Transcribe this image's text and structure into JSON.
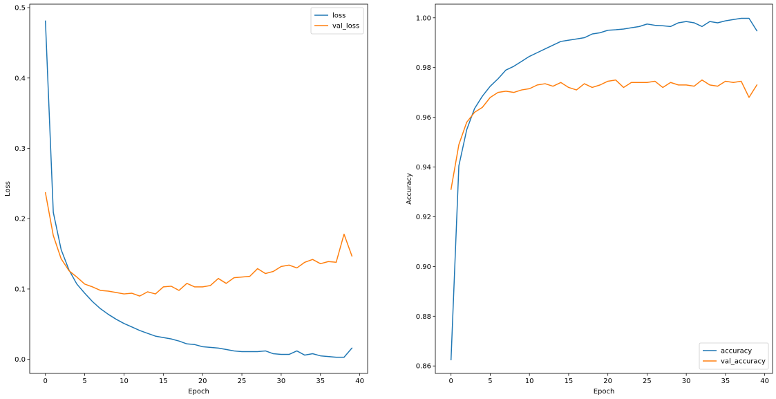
{
  "chart_data": [
    {
      "type": "line",
      "title": "",
      "xlabel": "Epoch",
      "ylabel": "Loss",
      "xlim": [
        -2,
        41
      ],
      "ylim": [
        -0.02,
        0.505
      ],
      "xticks": [
        0,
        5,
        10,
        15,
        20,
        25,
        30,
        35,
        40
      ],
      "yticks": [
        0.0,
        0.1,
        0.2,
        0.3,
        0.4,
        0.5
      ],
      "ytick_labels": [
        "0.0",
        "0.1",
        "0.2",
        "0.3",
        "0.4",
        "0.5"
      ],
      "legend_position": "upper-right",
      "grid": false,
      "x": [
        0,
        1,
        2,
        3,
        4,
        5,
        6,
        7,
        8,
        9,
        10,
        11,
        12,
        13,
        14,
        15,
        16,
        17,
        18,
        19,
        20,
        21,
        22,
        23,
        24,
        25,
        26,
        27,
        28,
        29,
        30,
        31,
        32,
        33,
        34,
        35,
        36,
        37,
        38,
        39
      ],
      "series": [
        {
          "name": "loss",
          "color": "#1f77b4",
          "values": [
            0.481,
            0.209,
            0.156,
            0.127,
            0.107,
            0.094,
            0.082,
            0.072,
            0.064,
            0.057,
            0.051,
            0.046,
            0.041,
            0.037,
            0.033,
            0.031,
            0.029,
            0.026,
            0.022,
            0.021,
            0.018,
            0.017,
            0.016,
            0.014,
            0.012,
            0.011,
            0.011,
            0.011,
            0.012,
            0.008,
            0.007,
            0.007,
            0.012,
            0.006,
            0.008,
            0.005,
            0.004,
            0.003,
            0.003,
            0.016
          ]
        },
        {
          "name": "val_loss",
          "color": "#ff7f0e",
          "values": [
            0.237,
            0.176,
            0.143,
            0.126,
            0.117,
            0.107,
            0.103,
            0.098,
            0.097,
            0.095,
            0.093,
            0.094,
            0.09,
            0.096,
            0.093,
            0.103,
            0.104,
            0.098,
            0.108,
            0.103,
            0.103,
            0.105,
            0.115,
            0.108,
            0.116,
            0.117,
            0.118,
            0.129,
            0.122,
            0.125,
            0.132,
            0.134,
            0.13,
            0.138,
            0.142,
            0.136,
            0.139,
            0.138,
            0.178,
            0.147
          ]
        }
      ]
    },
    {
      "type": "line",
      "title": "",
      "xlabel": "Epoch",
      "ylabel": "Accuracy",
      "xlim": [
        -2,
        41
      ],
      "ylim": [
        0.857,
        1.0055
      ],
      "xticks": [
        0,
        5,
        10,
        15,
        20,
        25,
        30,
        35,
        40
      ],
      "yticks": [
        0.86,
        0.88,
        0.9,
        0.92,
        0.94,
        0.96,
        0.98,
        1.0
      ],
      "ytick_labels": [
        "0.86",
        "0.88",
        "0.90",
        "0.92",
        "0.94",
        "0.96",
        "0.98",
        "1.00"
      ],
      "legend_position": "lower-right",
      "grid": false,
      "x": [
        0,
        1,
        2,
        3,
        4,
        5,
        6,
        7,
        8,
        9,
        10,
        11,
        12,
        13,
        14,
        15,
        16,
        17,
        18,
        19,
        20,
        21,
        22,
        23,
        24,
        25,
        26,
        27,
        28,
        29,
        30,
        31,
        32,
        33,
        34,
        35,
        36,
        37,
        38,
        39
      ],
      "series": [
        {
          "name": "accuracy",
          "color": "#1f77b4",
          "values": [
            0.8625,
            0.9405,
            0.955,
            0.9635,
            0.9685,
            0.9725,
            0.9755,
            0.979,
            0.9805,
            0.9825,
            0.9845,
            0.986,
            0.9875,
            0.989,
            0.9905,
            0.991,
            0.9915,
            0.992,
            0.9935,
            0.994,
            0.995,
            0.9952,
            0.9955,
            0.996,
            0.9965,
            0.9975,
            0.997,
            0.9968,
            0.9965,
            0.998,
            0.9985,
            0.998,
            0.9965,
            0.9985,
            0.998,
            0.9988,
            0.9993,
            0.9998,
            0.9998,
            0.9948
          ]
        },
        {
          "name": "val_accuracy",
          "color": "#ff7f0e",
          "values": [
            0.931,
            0.949,
            0.958,
            0.962,
            0.964,
            0.968,
            0.97,
            0.9705,
            0.97,
            0.971,
            0.9715,
            0.973,
            0.9735,
            0.9725,
            0.974,
            0.972,
            0.971,
            0.9735,
            0.972,
            0.973,
            0.9745,
            0.975,
            0.972,
            0.974,
            0.974,
            0.974,
            0.9745,
            0.972,
            0.974,
            0.973,
            0.973,
            0.9725,
            0.975,
            0.973,
            0.9725,
            0.9745,
            0.974,
            0.9745,
            0.968,
            0.973
          ]
        }
      ]
    }
  ]
}
